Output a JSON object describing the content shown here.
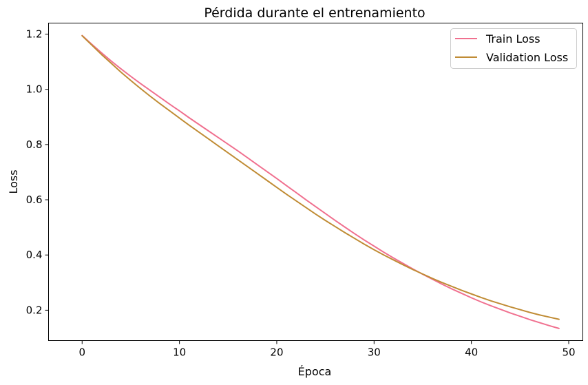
{
  "chart_data": {
    "type": "line",
    "title": "Pérdida durante el entrenamiento",
    "xlabel": "Época",
    "ylabel": "Loss",
    "xlim": [
      -3.45,
      51.45
    ],
    "ylim": [
      0.09,
      1.24
    ],
    "x_ticks": [
      0,
      10,
      20,
      30,
      40,
      50
    ],
    "y_ticks": [
      0.2,
      0.4,
      0.6,
      0.8,
      1.0,
      1.2
    ],
    "x_tick_labels": [
      "0",
      "10",
      "20",
      "30",
      "40",
      "50"
    ],
    "y_tick_labels": [
      "0.2",
      "0.4",
      "0.6",
      "0.8",
      "1.0",
      "1.2"
    ],
    "grid": false,
    "legend_position": "top-right",
    "x": [
      0,
      1,
      2,
      3,
      4,
      5,
      6,
      7,
      8,
      9,
      10,
      11,
      12,
      13,
      14,
      15,
      16,
      17,
      18,
      19,
      20,
      21,
      22,
      23,
      24,
      25,
      26,
      27,
      28,
      29,
      30,
      31,
      32,
      33,
      34,
      35,
      36,
      37,
      38,
      39,
      40,
      41,
      42,
      43,
      44,
      45,
      46,
      47,
      48,
      49
    ],
    "series": [
      {
        "name": "Train Loss",
        "color": "#f0708f",
        "values": [
          1.195,
          1.163,
          1.132,
          1.102,
          1.074,
          1.047,
          1.021,
          0.996,
          0.971,
          0.946,
          0.922,
          0.897,
          0.873,
          0.849,
          0.825,
          0.801,
          0.777,
          0.752,
          0.727,
          0.702,
          0.677,
          0.651,
          0.626,
          0.6,
          0.575,
          0.55,
          0.525,
          0.501,
          0.477,
          0.454,
          0.432,
          0.41,
          0.389,
          0.369,
          0.349,
          0.33,
          0.312,
          0.294,
          0.277,
          0.261,
          0.245,
          0.23,
          0.216,
          0.203,
          0.19,
          0.178,
          0.166,
          0.155,
          0.144,
          0.134
        ]
      },
      {
        "name": "Validation Loss",
        "color": "#c08c35",
        "values": [
          1.194,
          1.16,
          1.126,
          1.094,
          1.062,
          1.032,
          1.003,
          0.975,
          0.948,
          0.922,
          0.896,
          0.87,
          0.845,
          0.82,
          0.795,
          0.77,
          0.745,
          0.72,
          0.695,
          0.67,
          0.645,
          0.62,
          0.596,
          0.572,
          0.548,
          0.525,
          0.503,
          0.481,
          0.46,
          0.439,
          0.419,
          0.4,
          0.382,
          0.364,
          0.347,
          0.331,
          0.315,
          0.3,
          0.286,
          0.272,
          0.259,
          0.246,
          0.234,
          0.223,
          0.212,
          0.202,
          0.192,
          0.183,
          0.175,
          0.167
        ]
      }
    ]
  }
}
